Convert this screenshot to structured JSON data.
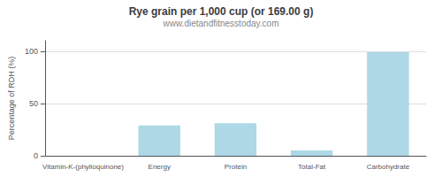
{
  "chart_data": {
    "type": "bar",
    "title": "Rye grain per 1,000 cup (or 169.00 g)",
    "subtitle": "www.dietandfitnesstoday.com",
    "categories": [
      "Vitamin-K-(phylloquinone)",
      "Energy",
      "Protein",
      "Total-Fat",
      "Carbohydrate"
    ],
    "values": [
      0,
      29,
      31,
      5,
      99
    ],
    "color": "#add8e6",
    "ylabel": "Percentage of RDH (%)",
    "ylim": [
      0,
      110
    ],
    "yticks": [
      0,
      50,
      100
    ],
    "grid": true
  }
}
